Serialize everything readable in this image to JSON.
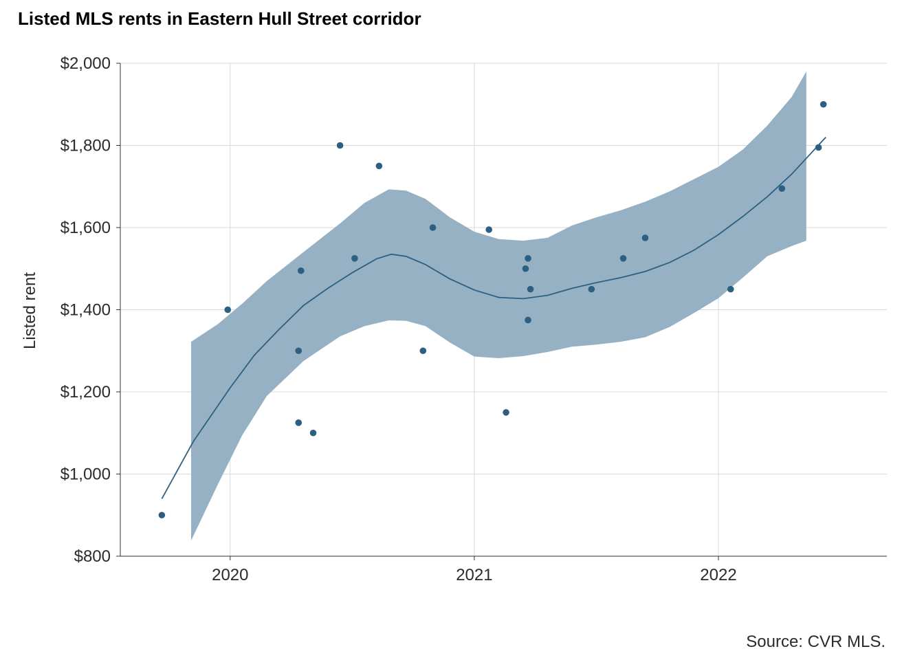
{
  "chart_data": {
    "type": "scatter",
    "title": "Listed MLS rents in Eastern Hull Street corridor",
    "ylabel": "Listed rent",
    "xlabel": "",
    "caption": "Source: CVR MLS.",
    "xlim": [
      2019.55,
      2022.69
    ],
    "ylim": [
      800,
      2000
    ],
    "x_ticks": [
      2020,
      2021,
      2022
    ],
    "y_ticks": [
      800,
      1000,
      1200,
      1400,
      1600,
      1800,
      2000
    ],
    "y_tick_labels": [
      "$800",
      "$1,000",
      "$1,200",
      "$1,400",
      "$1,600",
      "$1,800",
      "$2,000"
    ],
    "grid": true,
    "colors": {
      "points": "#2c5f82",
      "line": "#2c5f82",
      "ribbon": "#96b1c4",
      "grid": "#d9d9d9",
      "axis": "#333333"
    },
    "points": [
      {
        "x": 2019.72,
        "y": 900
      },
      {
        "x": 2019.99,
        "y": 1400
      },
      {
        "x": 2020.28,
        "y": 1300
      },
      {
        "x": 2020.28,
        "y": 1125
      },
      {
        "x": 2020.29,
        "y": 1495
      },
      {
        "x": 2020.34,
        "y": 1100
      },
      {
        "x": 2020.45,
        "y": 1800
      },
      {
        "x": 2020.51,
        "y": 1525
      },
      {
        "x": 2020.61,
        "y": 1750
      },
      {
        "x": 2020.79,
        "y": 1300
      },
      {
        "x": 2020.83,
        "y": 1600
      },
      {
        "x": 2021.06,
        "y": 1595
      },
      {
        "x": 2021.13,
        "y": 1150
      },
      {
        "x": 2021.21,
        "y": 1500
      },
      {
        "x": 2021.22,
        "y": 1525
      },
      {
        "x": 2021.22,
        "y": 1375
      },
      {
        "x": 2021.23,
        "y": 1450
      },
      {
        "x": 2021.48,
        "y": 1450
      },
      {
        "x": 2021.61,
        "y": 1525
      },
      {
        "x": 2021.7,
        "y": 1575
      },
      {
        "x": 2022.05,
        "y": 1450
      },
      {
        "x": 2022.26,
        "y": 1695
      },
      {
        "x": 2022.41,
        "y": 1795
      },
      {
        "x": 2022.43,
        "y": 1900
      }
    ],
    "smooth": [
      {
        "x": 2019.72,
        "y": 940
      },
      {
        "x": 2019.85,
        "y": 1080
      },
      {
        "x": 2020.0,
        "y": 1210
      },
      {
        "x": 2020.1,
        "y": 1290
      },
      {
        "x": 2020.2,
        "y": 1352
      },
      {
        "x": 2020.3,
        "y": 1410
      },
      {
        "x": 2020.4,
        "y": 1452
      },
      {
        "x": 2020.5,
        "y": 1490
      },
      {
        "x": 2020.6,
        "y": 1524
      },
      {
        "x": 2020.66,
        "y": 1535
      },
      {
        "x": 2020.72,
        "y": 1530
      },
      {
        "x": 2020.8,
        "y": 1510
      },
      {
        "x": 2020.9,
        "y": 1475
      },
      {
        "x": 2021.0,
        "y": 1448
      },
      {
        "x": 2021.1,
        "y": 1430
      },
      {
        "x": 2021.2,
        "y": 1427
      },
      {
        "x": 2021.3,
        "y": 1435
      },
      {
        "x": 2021.4,
        "y": 1452
      },
      {
        "x": 2021.5,
        "y": 1466
      },
      {
        "x": 2021.6,
        "y": 1478
      },
      {
        "x": 2021.7,
        "y": 1493
      },
      {
        "x": 2021.8,
        "y": 1515
      },
      {
        "x": 2021.9,
        "y": 1545
      },
      {
        "x": 2022.0,
        "y": 1583
      },
      {
        "x": 2022.1,
        "y": 1627
      },
      {
        "x": 2022.2,
        "y": 1675
      },
      {
        "x": 2022.3,
        "y": 1730
      },
      {
        "x": 2022.44,
        "y": 1820
      }
    ],
    "ribbon": [
      {
        "x": 2019.84,
        "lo": 838,
        "hi": 1322
      },
      {
        "x": 2019.95,
        "lo": 975,
        "hi": 1365
      },
      {
        "x": 2020.05,
        "lo": 1095,
        "hi": 1415
      },
      {
        "x": 2020.15,
        "lo": 1190,
        "hi": 1470
      },
      {
        "x": 2020.3,
        "lo": 1275,
        "hi": 1540
      },
      {
        "x": 2020.45,
        "lo": 1335,
        "hi": 1610
      },
      {
        "x": 2020.55,
        "lo": 1360,
        "hi": 1660
      },
      {
        "x": 2020.65,
        "lo": 1374,
        "hi": 1693
      },
      {
        "x": 2020.72,
        "lo": 1373,
        "hi": 1690
      },
      {
        "x": 2020.8,
        "lo": 1360,
        "hi": 1670
      },
      {
        "x": 2020.9,
        "lo": 1320,
        "hi": 1625
      },
      {
        "x": 2021.0,
        "lo": 1286,
        "hi": 1590
      },
      {
        "x": 2021.1,
        "lo": 1282,
        "hi": 1572
      },
      {
        "x": 2021.2,
        "lo": 1287,
        "hi": 1568
      },
      {
        "x": 2021.3,
        "lo": 1297,
        "hi": 1575
      },
      {
        "x": 2021.4,
        "lo": 1310,
        "hi": 1605
      },
      {
        "x": 2021.5,
        "lo": 1315,
        "hi": 1625
      },
      {
        "x": 2021.6,
        "lo": 1322,
        "hi": 1642
      },
      {
        "x": 2021.7,
        "lo": 1333,
        "hi": 1663
      },
      {
        "x": 2021.8,
        "lo": 1358,
        "hi": 1688
      },
      {
        "x": 2021.9,
        "lo": 1392,
        "hi": 1718
      },
      {
        "x": 2022.0,
        "lo": 1428,
        "hi": 1748
      },
      {
        "x": 2022.1,
        "lo": 1478,
        "hi": 1790
      },
      {
        "x": 2022.2,
        "lo": 1530,
        "hi": 1848
      },
      {
        "x": 2022.3,
        "lo": 1555,
        "hi": 1918
      },
      {
        "x": 2022.36,
        "lo": 1568,
        "hi": 1980
      }
    ]
  }
}
